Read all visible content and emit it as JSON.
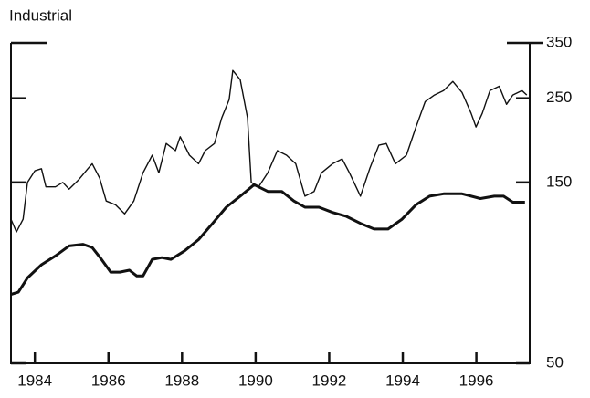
{
  "chart_data": {
    "type": "line",
    "title": "Industrial",
    "yscale": "log",
    "ylim": [
      50,
      350
    ],
    "yticks": [
      50,
      150,
      250,
      350
    ],
    "xlim": [
      1983.35,
      1997.45
    ],
    "xticks": [
      1984,
      1986,
      1988,
      1990,
      1992,
      1994,
      1996
    ],
    "series": [
      {
        "color": "#111111",
        "x": [
          1983.35,
          1983.5,
          1983.68,
          1983.8,
          1984.0,
          1984.18,
          1984.3,
          1984.56,
          1984.76,
          1984.93,
          1985.18,
          1985.44,
          1985.56,
          1985.76,
          1985.94,
          1986.19,
          1986.44,
          1986.69,
          1986.94,
          1987.19,
          1987.37,
          1987.57,
          1987.82,
          1987.95,
          1988.2,
          1988.45,
          1988.63,
          1988.88,
          1989.08,
          1989.28,
          1989.38,
          1989.58,
          1989.78,
          1989.88,
          1990.08,
          1990.33,
          1990.59,
          1990.84,
          1991.09,
          1991.34,
          1991.59,
          1991.79,
          1992.09,
          1992.35,
          1992.55,
          1992.85,
          1993.1,
          1993.35,
          1993.55,
          1993.8,
          1994.1,
          1994.36,
          1994.61,
          1994.86,
          1995.11,
          1995.36,
          1995.61,
          1995.86,
          1995.99,
          1996.16,
          1996.37,
          1996.62,
          1996.82,
          1996.99,
          1997.24,
          1997.37
        ],
        "values": [
          120,
          111,
          120,
          150,
          161,
          163,
          146,
          146,
          150,
          144,
          152,
          163,
          168,
          154,
          134,
          131,
          124,
          134,
          159,
          177,
          159,
          190,
          182,
          198,
          177,
          168,
          182,
          190,
          222,
          248,
          296,
          280,
          222,
          150,
          146,
          159,
          182,
          177,
          168,
          138,
          142,
          159,
          168,
          173,
          159,
          138,
          163,
          188,
          190,
          168,
          177,
          210,
          245,
          255,
          262,
          277,
          259,
          228,
          210,
          228,
          262,
          269,
          241,
          255,
          262,
          255
        ]
      },
      {
        "color": "#111111",
        "x": [
          1983.35,
          1983.55,
          1983.8,
          1984.18,
          1984.56,
          1984.93,
          1985.31,
          1985.56,
          1985.81,
          1986.06,
          1986.31,
          1986.57,
          1986.77,
          1986.94,
          1987.19,
          1987.45,
          1987.7,
          1988.07,
          1988.45,
          1988.83,
          1989.2,
          1989.58,
          1989.96,
          1990.33,
          1990.71,
          1991.04,
          1991.34,
          1991.72,
          1992.09,
          1992.47,
          1992.85,
          1993.22,
          1993.6,
          1993.98,
          1994.36,
          1994.73,
          1995.11,
          1995.61,
          1996.11,
          1996.49,
          1996.74,
          1996.99,
          1997.32
        ],
        "values": [
          76,
          77,
          84,
          91,
          96,
          102,
          103,
          101,
          94,
          87,
          87,
          88,
          85,
          85,
          94,
          95,
          94,
          99,
          106,
          117,
          129,
          138,
          148,
          142,
          142,
          134,
          129,
          129,
          125,
          122,
          117,
          113,
          113,
          120,
          131,
          138,
          140,
          140,
          136,
          138,
          138,
          133,
          133
        ]
      }
    ]
  }
}
